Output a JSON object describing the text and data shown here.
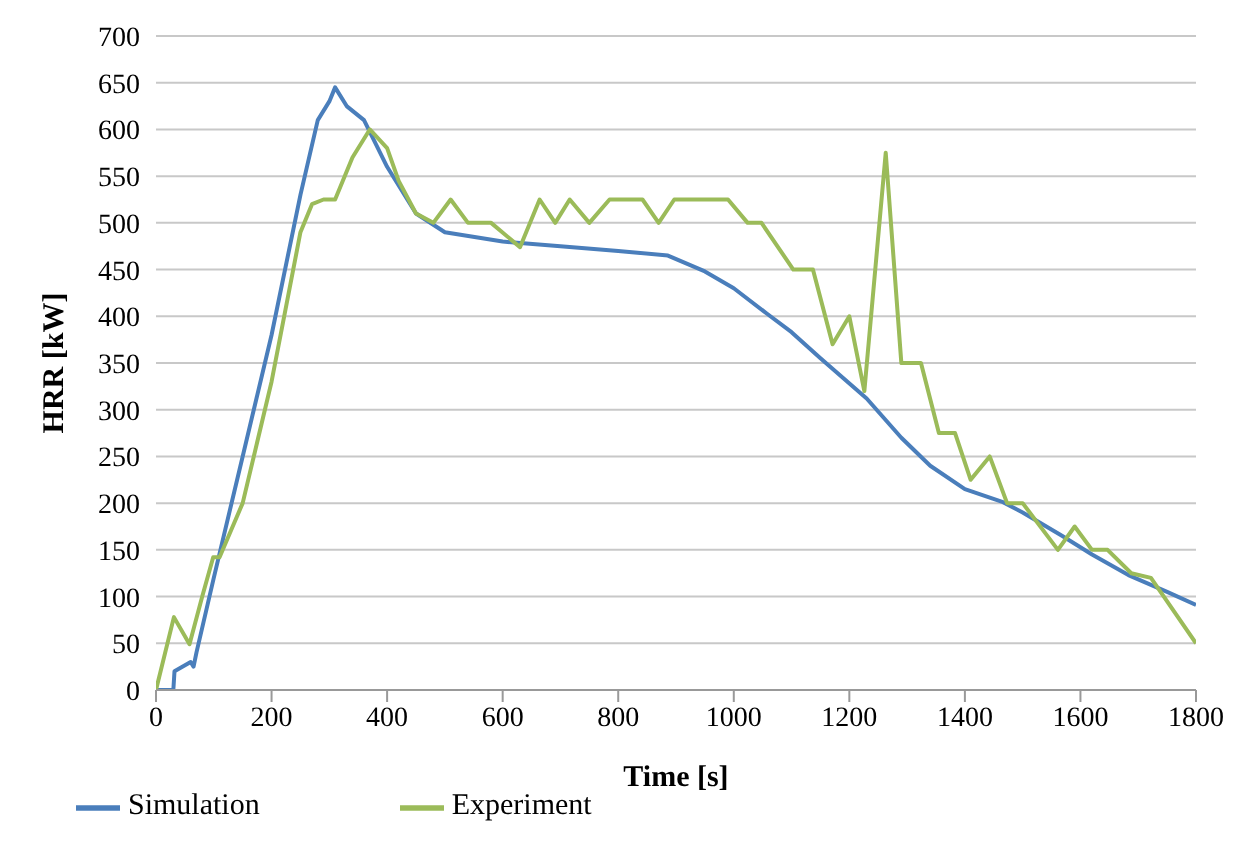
{
  "chart_data": {
    "type": "line",
    "xlabel": "Time [s]",
    "ylabel": "HRR [kW]",
    "xlim": [
      0,
      1800
    ],
    "xticks": [
      0,
      200,
      400,
      600,
      800,
      1000,
      1200,
      1400,
      1600,
      1800
    ],
    "ylim": [
      0,
      700
    ],
    "yticks": [
      0,
      50,
      100,
      150,
      200,
      250,
      300,
      350,
      400,
      450,
      500,
      550,
      600,
      650,
      700
    ],
    "grid": "y",
    "legend": "bottom left",
    "series": [
      {
        "name": "Simulation",
        "color": "#4a7ebb",
        "x": [
          0,
          30,
          32,
          60,
          65,
          70,
          100,
          150,
          200,
          250,
          280,
          300,
          310,
          330,
          360,
          400,
          450,
          500,
          600,
          700,
          800,
          886,
          950,
          1000,
          1057,
          1100,
          1150,
          1230,
          1290,
          1340,
          1400,
          1466,
          1500,
          1568,
          1620,
          1683,
          1750,
          1800
        ],
        "values": [
          0,
          0,
          20,
          30,
          25,
          40,
          120,
          250,
          380,
          530,
          610,
          630,
          645,
          625,
          610,
          560,
          510,
          490,
          480,
          475,
          470,
          465,
          448,
          430,
          403,
          383,
          355,
          312,
          270,
          240,
          215,
          201,
          190,
          165,
          145,
          123,
          105,
          91
        ]
      },
      {
        "name": "Experiment",
        "color": "#9bbb59",
        "x": [
          0,
          31,
          58,
          80,
          99,
          110,
          150,
          200,
          250,
          270,
          290,
          310,
          340,
          370,
          400,
          420,
          450,
          480,
          510,
          540,
          580,
          630,
          664,
          691,
          716,
          750,
          785,
          842,
          870,
          897,
          990,
          1024,
          1048,
          1103,
          1137,
          1171,
          1200,
          1226,
          1263,
          1290,
          1324,
          1355,
          1383,
          1410,
          1443,
          1473,
          1500,
          1561,
          1590,
          1620,
          1647,
          1688,
          1722,
          1800
        ],
        "values": [
          0,
          78,
          49,
          100,
          142,
          142,
          200,
          330,
          490,
          520,
          525,
          525,
          570,
          600,
          580,
          545,
          510,
          500,
          525,
          500,
          500,
          474,
          525,
          500,
          525,
          500,
          525,
          525,
          500,
          525,
          525,
          500,
          500,
          450,
          450,
          370,
          400,
          320,
          575,
          350,
          350,
          275,
          275,
          225,
          250,
          200,
          200,
          150,
          175,
          150,
          150,
          125,
          120,
          50
        ]
      }
    ]
  }
}
